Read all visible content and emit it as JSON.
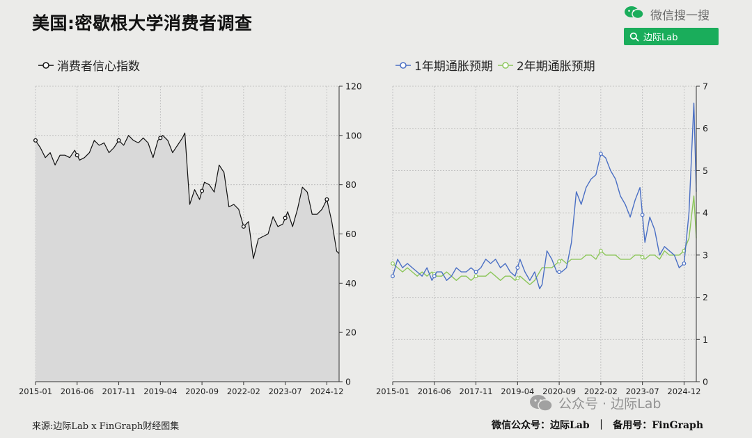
{
  "page": {
    "title": "美国:密歇根大学消费者调查",
    "source": "来源:边际Lab x FinGraph财经图集",
    "footer_right": "微信公众号：边际Lab  ｜  备用号：FinGraph",
    "watermark": "公众号 · 边际Lab"
  },
  "wechat_search": {
    "label": "微信搜一搜",
    "query": "边际Lab",
    "accent": "#1aad5b"
  },
  "chart_data": [
    {
      "type": "area",
      "legend": [
        "消费者信心指数"
      ],
      "x_ticks": [
        "2015-01",
        "2016-06",
        "2017-11",
        "2019-04",
        "2020-09",
        "2022-02",
        "2023-07",
        "2024-12"
      ],
      "y_ticks": [
        0,
        20,
        40,
        60,
        80,
        100,
        120
      ],
      "ylim": [
        0,
        120
      ],
      "xlim": [
        "2015-01",
        "2025-05"
      ],
      "grid": true,
      "colors": {
        "line": "#111111",
        "fill": "#d9d9d9"
      },
      "series": [
        {
          "name": "消费者信心指数",
          "x": [
            "2015-01",
            "2015-03",
            "2015-05",
            "2015-07",
            "2015-09",
            "2015-11",
            "2016-01",
            "2016-03",
            "2016-05",
            "2016-07",
            "2016-09",
            "2016-11",
            "2017-01",
            "2017-03",
            "2017-05",
            "2017-07",
            "2017-09",
            "2017-11",
            "2018-01",
            "2018-03",
            "2018-05",
            "2018-07",
            "2018-09",
            "2018-11",
            "2019-01",
            "2019-03",
            "2019-05",
            "2019-07",
            "2019-09",
            "2019-11",
            "2020-01",
            "2020-02",
            "2020-04",
            "2020-06",
            "2020-08",
            "2020-10",
            "2020-12",
            "2021-02",
            "2021-04",
            "2021-06",
            "2021-08",
            "2021-10",
            "2021-12",
            "2022-02",
            "2022-04",
            "2022-06",
            "2022-08",
            "2022-10",
            "2022-12",
            "2023-02",
            "2023-04",
            "2023-06",
            "2023-08",
            "2023-10",
            "2023-12",
            "2024-02",
            "2024-04",
            "2024-06",
            "2024-08",
            "2024-10",
            "2024-12",
            "2025-02",
            "2025-04",
            "2025-05"
          ],
          "values": [
            98,
            95,
            91,
            93,
            88,
            92,
            92,
            91,
            94,
            90,
            91,
            93,
            98,
            96,
            97,
            93,
            95,
            98,
            96,
            100,
            98,
            97,
            99,
            97,
            91,
            98,
            100,
            98,
            93,
            96,
            99,
            101,
            72,
            78,
            74,
            81,
            80,
            77,
            88,
            85,
            71,
            72,
            70,
            63,
            65,
            50,
            58,
            59,
            60,
            67,
            63,
            64,
            69,
            63,
            70,
            79,
            77,
            68,
            68,
            70,
            74,
            65,
            53,
            52
          ]
        }
      ],
      "markers_x": [
        "2015-01",
        "2016-06",
        "2017-11",
        "2019-04",
        "2020-09",
        "2022-02",
        "2023-07",
        "2024-12"
      ]
    },
    {
      "type": "line",
      "legend": [
        "1年期通胀预期",
        "2年期通胀预期"
      ],
      "x_ticks": [
        "2015-01",
        "2016-06",
        "2017-11",
        "2019-04",
        "2020-09",
        "2022-02",
        "2023-07",
        "2024-12"
      ],
      "y_ticks": [
        0,
        1,
        2,
        3,
        4,
        5,
        6,
        7
      ],
      "ylim": [
        0,
        7
      ],
      "xlim": [
        "2015-01",
        "2025-05"
      ],
      "grid": true,
      "x": [
        "2015-01",
        "2015-03",
        "2015-05",
        "2015-07",
        "2015-09",
        "2015-11",
        "2016-01",
        "2016-03",
        "2016-05",
        "2016-07",
        "2016-09",
        "2016-11",
        "2017-01",
        "2017-03",
        "2017-05",
        "2017-07",
        "2017-09",
        "2017-11",
        "2018-01",
        "2018-03",
        "2018-05",
        "2018-07",
        "2018-09",
        "2018-11",
        "2019-01",
        "2019-03",
        "2019-05",
        "2019-07",
        "2019-09",
        "2019-11",
        "2020-01",
        "2020-02",
        "2020-04",
        "2020-06",
        "2020-08",
        "2020-10",
        "2020-12",
        "2021-02",
        "2021-04",
        "2021-06",
        "2021-08",
        "2021-10",
        "2021-12",
        "2022-02",
        "2022-04",
        "2022-06",
        "2022-08",
        "2022-10",
        "2022-12",
        "2023-02",
        "2023-04",
        "2023-06",
        "2023-08",
        "2023-10",
        "2023-12",
        "2024-02",
        "2024-04",
        "2024-06",
        "2024-08",
        "2024-10",
        "2024-12",
        "2025-02",
        "2025-04",
        "2025-05"
      ],
      "series": [
        {
          "name": "1年期通胀预期",
          "color": "#4a6fc4",
          "values": [
            2.5,
            2.9,
            2.7,
            2.8,
            2.7,
            2.6,
            2.5,
            2.7,
            2.4,
            2.6,
            2.6,
            2.4,
            2.5,
            2.7,
            2.6,
            2.6,
            2.7,
            2.6,
            2.7,
            2.9,
            2.8,
            2.9,
            2.7,
            2.8,
            2.6,
            2.5,
            2.9,
            2.6,
            2.4,
            2.6,
            2.2,
            2.3,
            3.1,
            2.9,
            2.6,
            2.6,
            2.7,
            3.3,
            4.5,
            4.2,
            4.6,
            4.8,
            4.9,
            5.4,
            5.3,
            5.0,
            4.8,
            4.4,
            4.2,
            3.9,
            4.3,
            4.6,
            3.3,
            3.9,
            3.6,
            3.0,
            3.2,
            3.1,
            3.0,
            2.7,
            2.8,
            4.0,
            6.6,
            4.5
          ]
        },
        {
          "name": "2年期通胀预期",
          "color": "#8cc65a",
          "values": [
            2.8,
            2.7,
            2.6,
            2.7,
            2.6,
            2.5,
            2.6,
            2.5,
            2.6,
            2.5,
            2.5,
            2.6,
            2.5,
            2.4,
            2.5,
            2.5,
            2.4,
            2.5,
            2.5,
            2.5,
            2.6,
            2.5,
            2.4,
            2.5,
            2.5,
            2.4,
            2.5,
            2.4,
            2.3,
            2.4,
            2.6,
            2.7,
            2.7,
            2.7,
            2.8,
            2.9,
            2.8,
            2.9,
            2.9,
            2.9,
            3.0,
            3.0,
            2.9,
            3.1,
            3.0,
            3.0,
            3.0,
            2.9,
            2.9,
            2.9,
            3.0,
            3.0,
            2.9,
            3.0,
            3.0,
            2.9,
            3.1,
            3.0,
            3.0,
            3.0,
            3.1,
            3.4,
            4.4,
            3.4
          ]
        }
      ],
      "markers_x": [
        "2015-01",
        "2016-06",
        "2017-11",
        "2019-04",
        "2020-09",
        "2022-02",
        "2023-07",
        "2024-12"
      ]
    }
  ]
}
